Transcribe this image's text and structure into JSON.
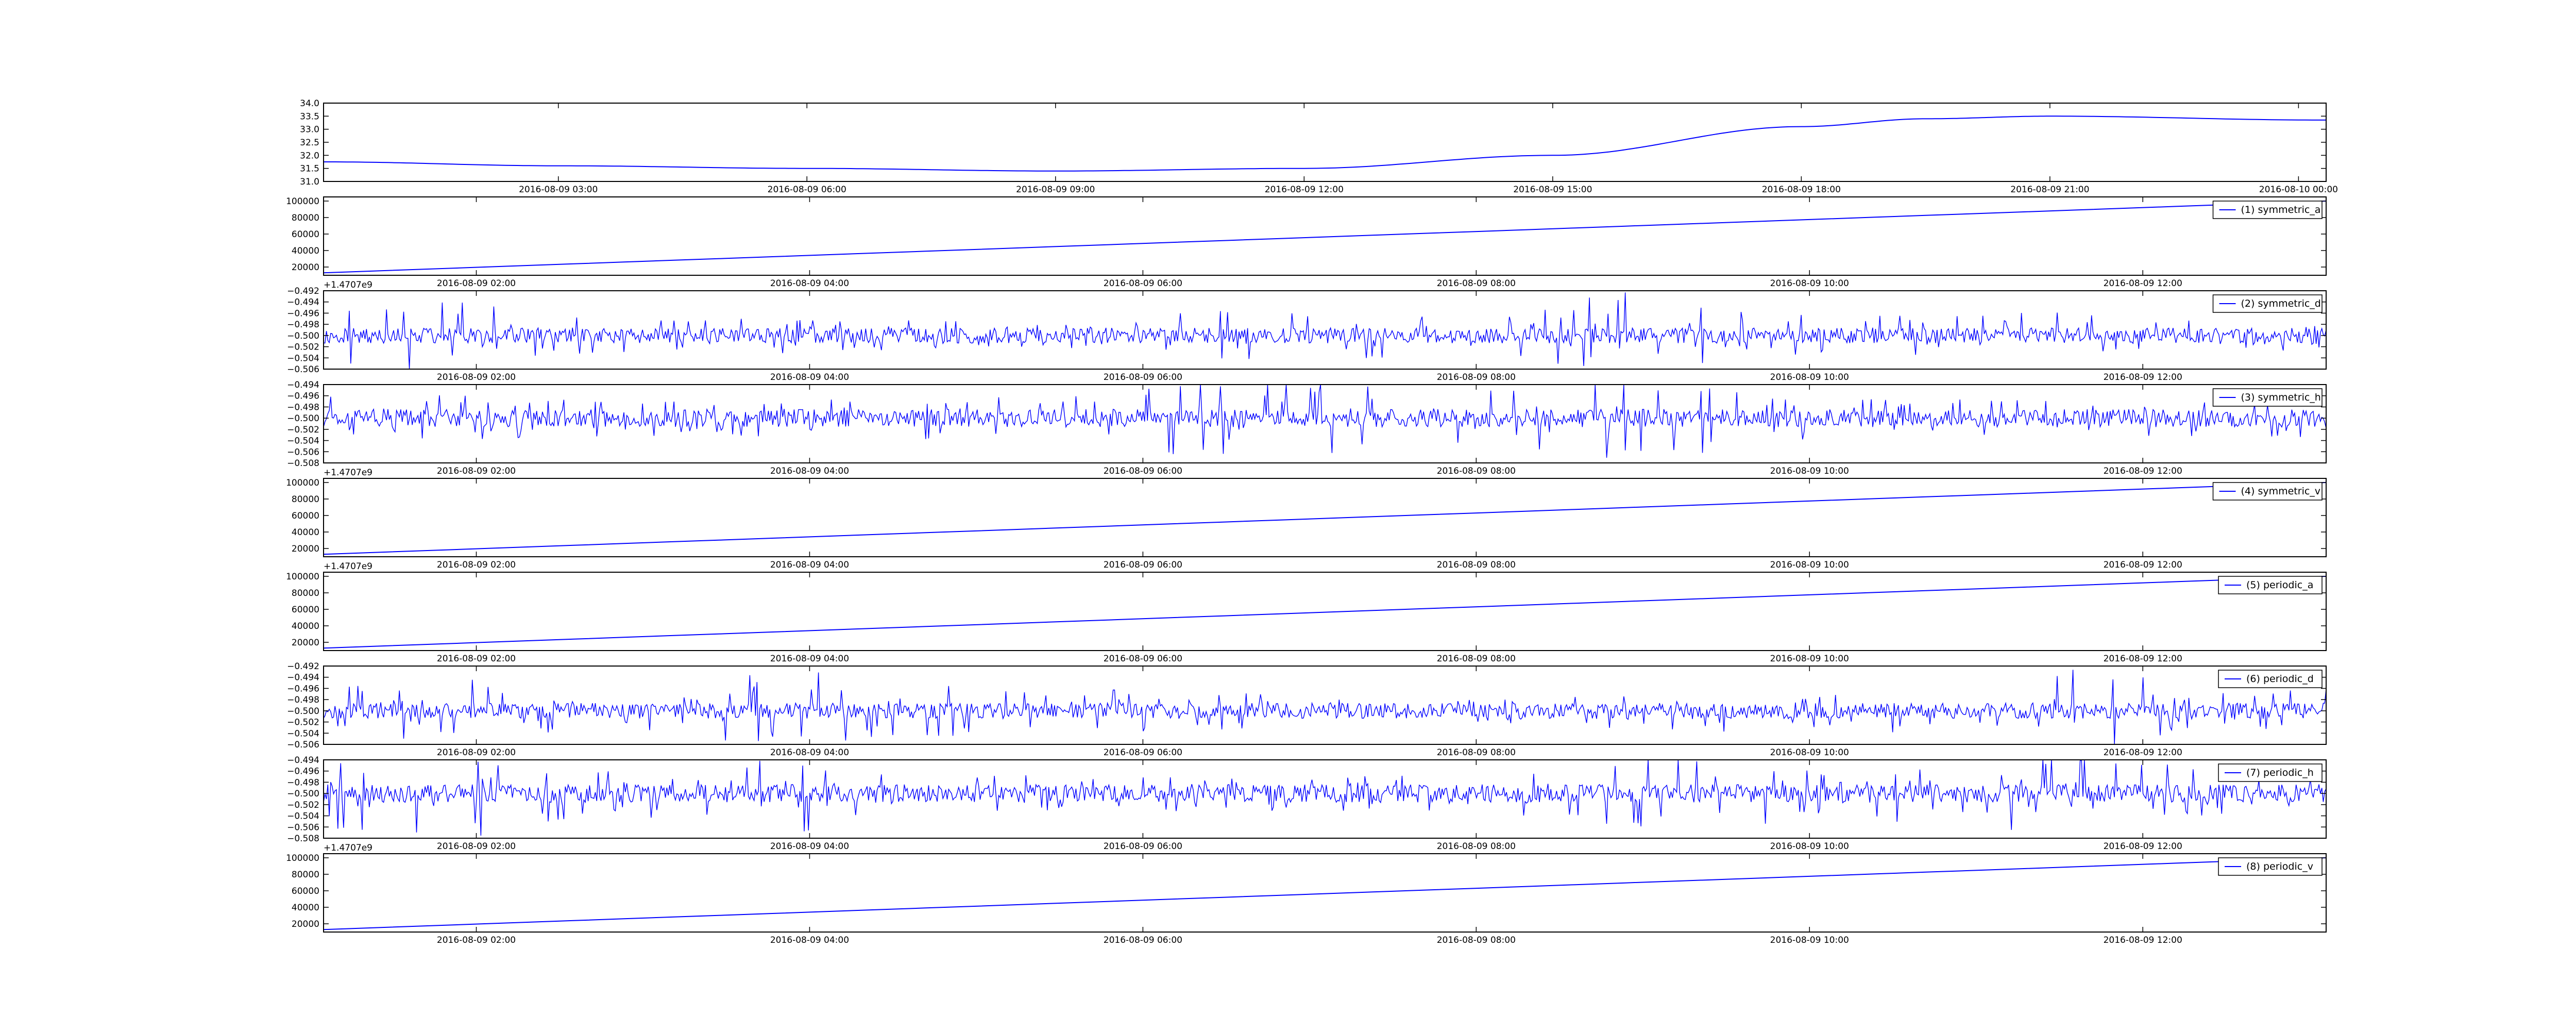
{
  "figure": {
    "line_color": "#0000ff",
    "background": "#ffffff"
  },
  "chart_data": [
    {
      "type": "line",
      "title": "",
      "xlabel": "",
      "ylabel": "",
      "offset_text": "",
      "legend": "",
      "x_ticks": [
        "2016-08-09 03:00",
        "2016-08-09 06:00",
        "2016-08-09 09:00",
        "2016-08-09 12:00",
        "2016-08-09 15:00",
        "2016-08-09 18:00",
        "2016-08-09 21:00",
        "2016-08-10 00:00"
      ],
      "y_ticks": [
        "31.0",
        "31.5",
        "32.0",
        "32.5",
        "33.0",
        "33.5",
        "34.0"
      ],
      "ylim": [
        31.0,
        34.0
      ],
      "xlim": [
        "2016-08-09 00:10",
        "2016-08-10 00:20"
      ],
      "series": [
        {
          "values": [
            {
              "x": "2016-08-09 00:10",
              "y": 31.75
            },
            {
              "x": "2016-08-09 03:00",
              "y": 31.6
            },
            {
              "x": "2016-08-09 06:00",
              "y": 31.5
            },
            {
              "x": "2016-08-09 09:00",
              "y": 31.4
            },
            {
              "x": "2016-08-09 12:00",
              "y": 31.5
            },
            {
              "x": "2016-08-09 15:00",
              "y": 32.0
            },
            {
              "x": "2016-08-09 18:00",
              "y": 33.1
            },
            {
              "x": "2016-08-09 19:30",
              "y": 33.4
            },
            {
              "x": "2016-08-09 21:00",
              "y": 33.5
            },
            {
              "x": "2016-08-10 00:20",
              "y": 33.35
            }
          ]
        }
      ]
    },
    {
      "type": "line",
      "title": "",
      "offset_text": "+1.4707e9",
      "legend": "(1) symmetric_a",
      "x_ticks": [
        "2016-08-09 02:00",
        "2016-08-09 04:00",
        "2016-08-09 06:00",
        "2016-08-09 08:00",
        "2016-08-09 10:00",
        "2016-08-09 12:00"
      ],
      "y_ticks": [
        "20000",
        "40000",
        "60000",
        "80000",
        "100000"
      ],
      "ylim": [
        10000,
        105000
      ],
      "xlim": [
        "2016-08-09 01:05",
        "2016-08-09 13:06"
      ],
      "series": [
        {
          "name": "(1) symmetric_a",
          "values": [
            {
              "x": "2016-08-09 01:05",
              "y": 13000
            },
            {
              "x": "2016-08-09 13:06",
              "y": 100000
            }
          ]
        }
      ]
    },
    {
      "type": "line",
      "title": "",
      "offset_text": "",
      "legend": "(2) symmetric_d",
      "x_ticks": [
        "2016-08-09 02:00",
        "2016-08-09 04:00",
        "2016-08-09 06:00",
        "2016-08-09 08:00",
        "2016-08-09 10:00",
        "2016-08-09 12:00"
      ],
      "y_ticks": [
        "−0.492",
        "−0.494",
        "−0.496",
        "−0.498",
        "−0.500",
        "−0.502",
        "−0.504",
        "−0.506"
      ],
      "ylim": [
        -0.506,
        -0.492
      ],
      "xlim": [
        "2016-08-09 01:05",
        "2016-08-09 13:06"
      ],
      "series": [
        {
          "name": "(2) symmetric_d",
          "baseline": -0.5,
          "noise_amplitude": 0.006
        }
      ]
    },
    {
      "type": "line",
      "title": "",
      "offset_text": "+1.4707e9",
      "legend": "(3) symmetric_h",
      "x_ticks": [
        "2016-08-09 02:00",
        "2016-08-09 04:00",
        "2016-08-09 06:00",
        "2016-08-09 08:00",
        "2016-08-09 10:00",
        "2016-08-09 12:00"
      ],
      "y_ticks": [
        "−0.494",
        "−0.496",
        "−0.498",
        "−0.500",
        "−0.502",
        "−0.504",
        "−0.506",
        "−0.508"
      ],
      "ylim": [
        -0.508,
        -0.494
      ],
      "xlim": [
        "2016-08-09 01:05",
        "2016-08-09 13:06"
      ],
      "series": [
        {
          "name": "(3) symmetric_h",
          "baseline": -0.5,
          "noise_amplitude": 0.007
        }
      ]
    },
    {
      "type": "line",
      "title": "",
      "offset_text": "+1.4707e9",
      "legend": "(4) symmetric_v",
      "x_ticks": [
        "2016-08-09 02:00",
        "2016-08-09 04:00",
        "2016-08-09 06:00",
        "2016-08-09 08:00",
        "2016-08-09 10:00",
        "2016-08-09 12:00"
      ],
      "y_ticks": [
        "20000",
        "40000",
        "60000",
        "80000",
        "100000"
      ],
      "ylim": [
        10000,
        105000
      ],
      "xlim": [
        "2016-08-09 01:05",
        "2016-08-09 13:06"
      ],
      "series": [
        {
          "name": "(4) symmetric_v",
          "values": [
            {
              "x": "2016-08-09 01:05",
              "y": 13000
            },
            {
              "x": "2016-08-09 13:06",
              "y": 100000
            }
          ]
        }
      ]
    },
    {
      "type": "line",
      "title": "",
      "offset_text": "",
      "legend": "(5) periodic_a",
      "x_ticks": [
        "2016-08-09 02:00",
        "2016-08-09 04:00",
        "2016-08-09 06:00",
        "2016-08-09 08:00",
        "2016-08-09 10:00",
        "2016-08-09 12:00"
      ],
      "y_ticks": [
        "20000",
        "40000",
        "60000",
        "80000",
        "100000"
      ],
      "ylim": [
        10000,
        105000
      ],
      "xlim": [
        "2016-08-09 01:05",
        "2016-08-09 13:06"
      ],
      "series": [
        {
          "name": "(5) periodic_a",
          "values": [
            {
              "x": "2016-08-09 01:05",
              "y": 13000
            },
            {
              "x": "2016-08-09 13:06",
              "y": 100000
            }
          ]
        }
      ]
    },
    {
      "type": "line",
      "title": "",
      "offset_text": "",
      "legend": "(6) periodic_d",
      "x_ticks": [
        "2016-08-09 02:00",
        "2016-08-09 04:00",
        "2016-08-09 06:00",
        "2016-08-09 08:00",
        "2016-08-09 10:00",
        "2016-08-09 12:00"
      ],
      "y_ticks": [
        "−0.492",
        "−0.494",
        "−0.496",
        "−0.498",
        "−0.500",
        "−0.502",
        "−0.504",
        "−0.506"
      ],
      "ylim": [
        -0.506,
        -0.492
      ],
      "xlim": [
        "2016-08-09 01:05",
        "2016-08-09 13:06"
      ],
      "series": [
        {
          "name": "(6) periodic_d",
          "baseline": -0.5,
          "noise_amplitude": 0.006
        }
      ]
    },
    {
      "type": "line",
      "title": "",
      "offset_text": "+1.4707e9",
      "legend": "(7) periodic_h",
      "x_ticks": [
        "2016-08-09 02:00",
        "2016-08-09 04:00",
        "2016-08-09 06:00",
        "2016-08-09 08:00",
        "2016-08-09 10:00",
        "2016-08-09 12:00"
      ],
      "y_ticks": [
        "−0.494",
        "−0.496",
        "−0.498",
        "−0.500",
        "−0.502",
        "−0.504",
        "−0.506",
        "−0.508"
      ],
      "ylim": [
        -0.508,
        -0.494
      ],
      "xlim": [
        "2016-08-09 01:05",
        "2016-08-09 13:06"
      ],
      "series": [
        {
          "name": "(7) periodic_h",
          "baseline": -0.5,
          "noise_amplitude": 0.007
        }
      ]
    },
    {
      "type": "line",
      "title": "",
      "offset_text": "",
      "legend": "(8) periodic_v",
      "x_ticks": [
        "2016-08-09 02:00",
        "2016-08-09 04:00",
        "2016-08-09 06:00",
        "2016-08-09 08:00",
        "2016-08-09 10:00",
        "2016-08-09 12:00"
      ],
      "y_ticks": [
        "20000",
        "40000",
        "60000",
        "80000",
        "100000"
      ],
      "ylim": [
        10000,
        105000
      ],
      "xlim": [
        "2016-08-09 01:05",
        "2016-08-09 13:06"
      ],
      "series": [
        {
          "name": "(8) periodic_v",
          "values": [
            {
              "x": "2016-08-09 01:05",
              "y": 13000
            },
            {
              "x": "2016-08-09 13:06",
              "y": 100000
            }
          ]
        }
      ]
    }
  ]
}
